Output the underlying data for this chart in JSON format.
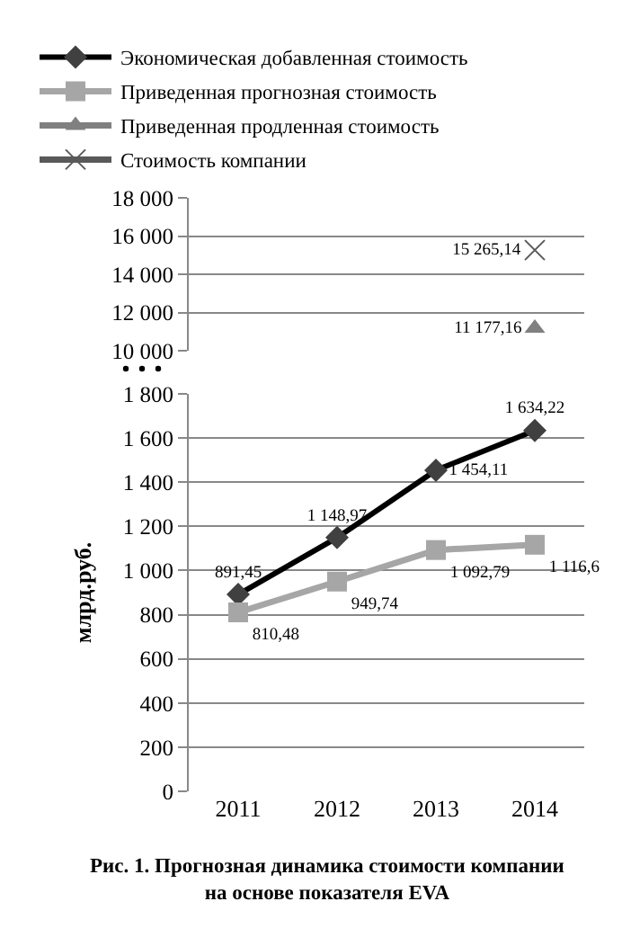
{
  "chart_data": [
    {
      "type": "line",
      "categories": [
        "2011",
        "2012",
        "2013",
        "2014"
      ],
      "legend": "top",
      "grid": "y",
      "tick_labels": "y",
      "ylim": [
        10000,
        18000
      ],
      "yticks": [
        {
          "value": 10000,
          "label": "10 000"
        },
        {
          "value": 12000,
          "label": "12 000"
        },
        {
          "value": 14000,
          "label": "14 000"
        },
        {
          "value": 16000,
          "label": "16 000"
        },
        {
          "value": 18000,
          "label": "18 000"
        }
      ],
      "series": [
        {
          "name": "Экономическая добавленная стоимость",
          "color": "#000000",
          "marker": "diamond",
          "values": [
            null,
            null,
            null,
            null
          ]
        },
        {
          "name": "Приведенная прогнозная стоимость",
          "color": "#a6a6a6",
          "marker": "square",
          "values": [
            null,
            null,
            null,
            null
          ]
        },
        {
          "name": "Приведенная продленная стоимость",
          "color": "#808080",
          "marker": "triangle",
          "values": [
            null,
            null,
            null,
            11177.16
          ],
          "value_labels": [
            null,
            null,
            null,
            "11 177,16"
          ]
        },
        {
          "name": "Стоимость компании",
          "color": "#595959",
          "marker": "cross",
          "values": [
            null,
            null,
            null,
            15265.14
          ],
          "value_labels": [
            null,
            null,
            null,
            "15 265,14"
          ]
        }
      ]
    },
    {
      "type": "line",
      "categories": [
        "2011",
        "2012",
        "2013",
        "2014"
      ],
      "ylabel": "млрд.руб.",
      "grid": "y",
      "ylim": [
        0,
        1800
      ],
      "yticks": [
        0,
        200,
        400,
        600,
        800,
        {
          "value": 1000,
          "label": "1 000"
        },
        {
          "value": 1200,
          "label": "1 200"
        },
        {
          "value": 1400,
          "label": "1 400"
        },
        {
          "value": 1600,
          "label": "1 600"
        },
        {
          "value": 1800,
          "label": "1 800"
        }
      ],
      "annotations": [
        "Рис. 1. Прогнозная динамика стоимости компании\nна основе показателя EVA"
      ],
      "series": [
        {
          "color": "#000000",
          "marker": "diamond",
          "values": [
            891.45,
            1148.97,
            1454.11,
            1634.22
          ],
          "value_labels": [
            "891,45",
            "1 148,97",
            "1 454,11",
            "1 634,22"
          ]
        },
        {
          "color": "#a6a6a6",
          "marker": "square",
          "values": [
            810.48,
            949.74,
            1092.79,
            1116.6
          ],
          "value_labels": [
            "810,48",
            "949,74",
            "1 092,79",
            "1 116,6"
          ]
        }
      ]
    }
  ]
}
